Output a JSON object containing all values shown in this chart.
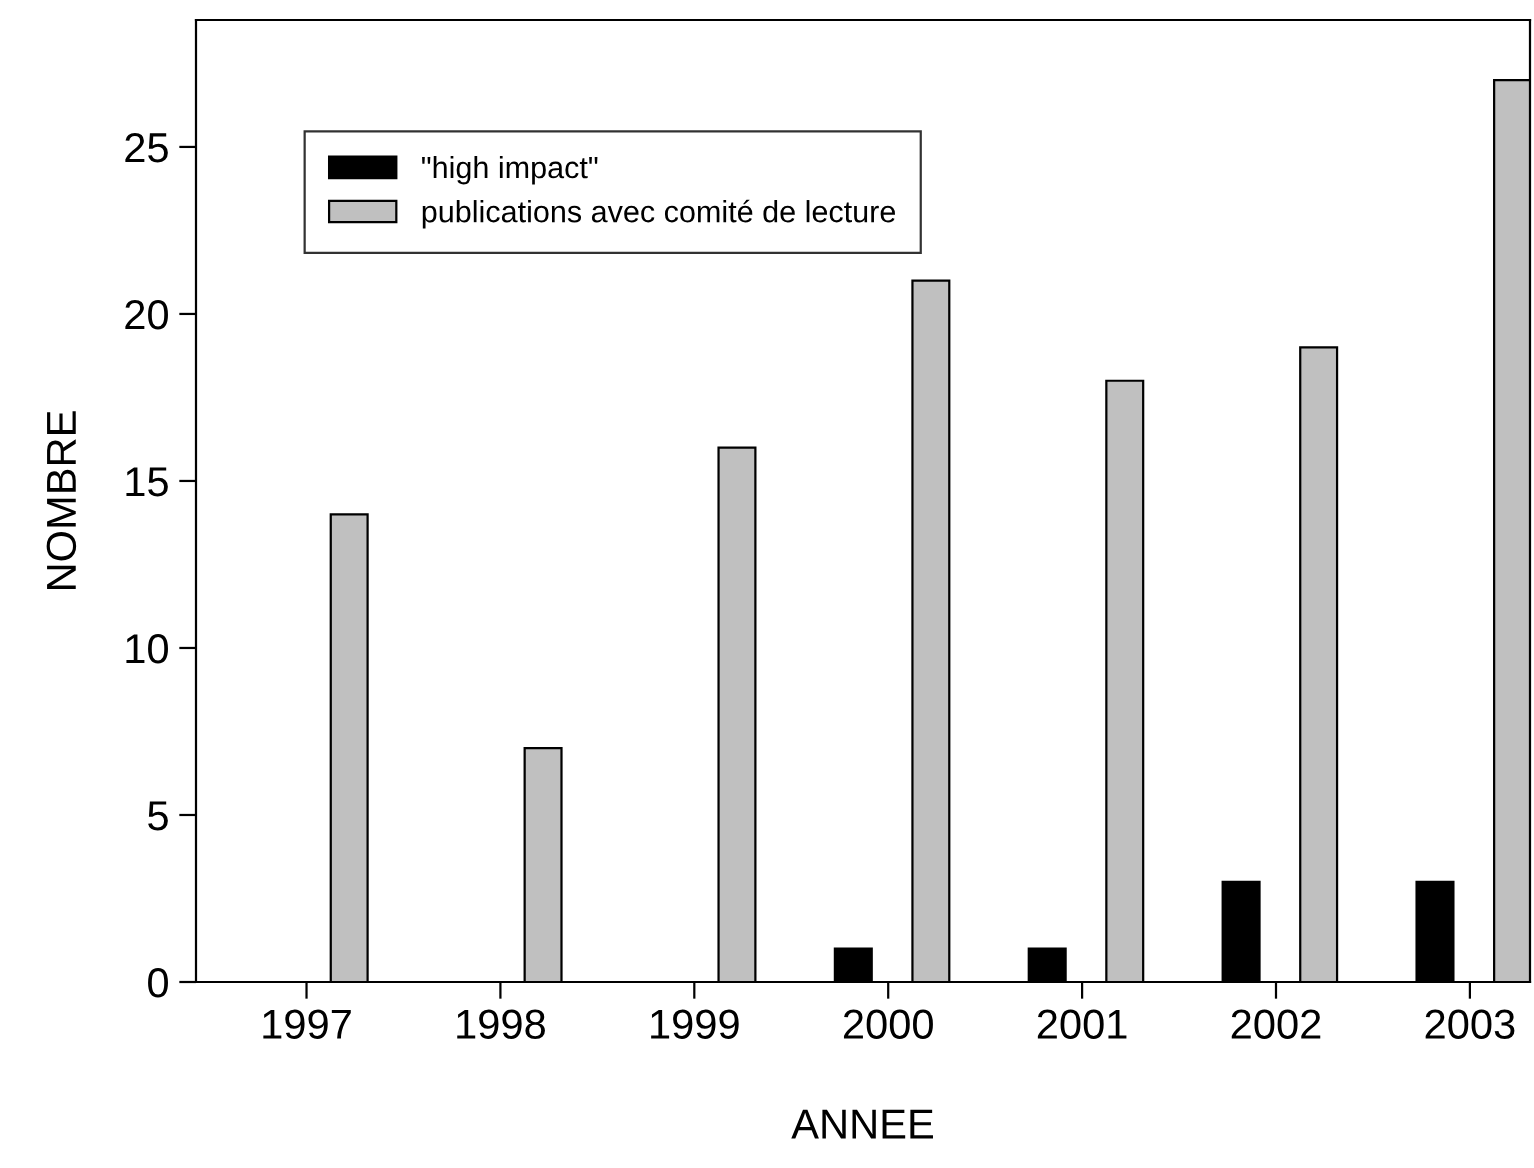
{
  "chart_data": {
    "type": "bar",
    "xlabel": "ANNEE",
    "ylabel": "NOMBRE",
    "categories": [
      "1997",
      "1998",
      "1999",
      "2000",
      "2001",
      "2002",
      "2003"
    ],
    "series": [
      {
        "name": "\"high impact\"",
        "color": "#000000",
        "values": [
          0,
          0,
          0,
          1,
          1,
          3,
          3
        ]
      },
      {
        "name": "publications avec comité de lecture",
        "color": "#c0c0c0",
        "values": [
          14,
          7,
          16,
          21,
          18,
          19,
          27
        ]
      }
    ],
    "ylim": [
      0,
      28.8
    ],
    "yticks": [
      0,
      5,
      10,
      15,
      20,
      25
    ],
    "grid": false,
    "legend": "top left"
  }
}
